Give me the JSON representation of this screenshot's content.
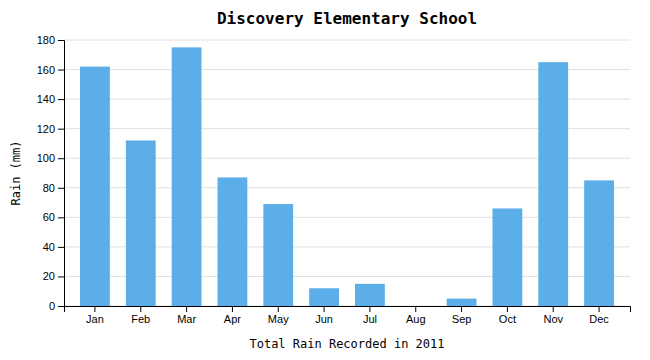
{
  "chart_data": {
    "type": "bar",
    "title": "Discovery Elementary School",
    "xlabel": "Total Rain Recorded in 2011",
    "ylabel": "Rain (mm)",
    "categories": [
      "Jan",
      "Feb",
      "Mar",
      "Apr",
      "May",
      "Jun",
      "Jul",
      "Aug",
      "Sep",
      "Oct",
      "Nov",
      "Dec"
    ],
    "values": [
      162,
      112,
      175,
      87,
      69,
      12,
      15,
      0,
      5,
      66,
      165,
      85
    ],
    "color": "#5BAEE8",
    "ylim": [
      0,
      180
    ],
    "yticks": [
      0,
      20,
      40,
      60,
      80,
      100,
      120,
      140,
      160,
      180
    ],
    "grid": true
  }
}
